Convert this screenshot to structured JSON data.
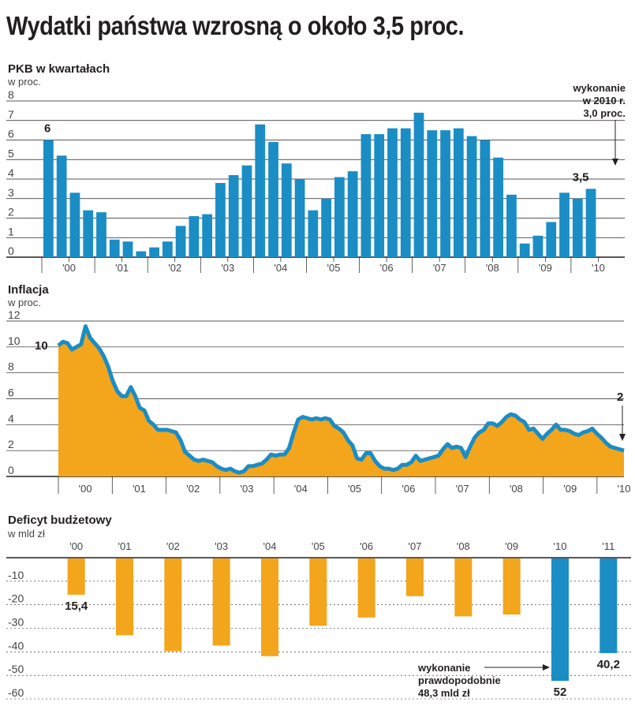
{
  "title": "Wydatki państwa wzrosną o około 3,5 proc.",
  "colors": {
    "blue": "#1a8dc5",
    "orange": "#f3a51c",
    "grid": "#231f20",
    "text": "#231f20"
  },
  "chart_data": [
    {
      "type": "bar",
      "title": "PKB w kwartałach",
      "ylabel": "w proc.",
      "ylim": [
        0,
        8
      ],
      "yticks": [
        0,
        1,
        2,
        3,
        4,
        5,
        6,
        7,
        8
      ],
      "xtick_labels": [
        "'00",
        "'01",
        "'02",
        "'03",
        "'04",
        "'05",
        "'06",
        "'07",
        "'08",
        "'09",
        "'10"
      ],
      "categories": [
        "2000Q1",
        "2000Q2",
        "2000Q3",
        "2000Q4",
        "2001Q1",
        "2001Q2",
        "2001Q3",
        "2001Q4",
        "2002Q1",
        "2002Q2",
        "2002Q3",
        "2002Q4",
        "2003Q1",
        "2003Q2",
        "2003Q3",
        "2003Q4",
        "2004Q1",
        "2004Q2",
        "2004Q3",
        "2004Q4",
        "2005Q1",
        "2005Q2",
        "2005Q3",
        "2005Q4",
        "2006Q1",
        "2006Q2",
        "2006Q3",
        "2006Q4",
        "2007Q1",
        "2007Q2",
        "2007Q3",
        "2007Q4",
        "2008Q1",
        "2008Q2",
        "2008Q3",
        "2008Q4",
        "2009Q1",
        "2009Q2",
        "2009Q3",
        "2009Q4",
        "2010Q1",
        "2010Q2"
      ],
      "values": [
        6.0,
        5.2,
        3.3,
        2.4,
        2.3,
        0.9,
        0.8,
        0.3,
        0.5,
        0.8,
        1.6,
        2.1,
        2.2,
        3.8,
        4.2,
        4.7,
        6.8,
        5.9,
        4.8,
        4.0,
        2.4,
        3.0,
        4.1,
        4.4,
        6.3,
        6.3,
        6.6,
        6.6,
        7.4,
        6.5,
        6.5,
        6.6,
        6.2,
        6.0,
        5.1,
        3.2,
        0.7,
        1.1,
        1.8,
        3.3,
        3.0,
        3.5
      ],
      "data_labels": {
        "first": "6",
        "last": "3,5"
      },
      "annotation": [
        "wykonanie",
        "w 2010 r.",
        "3,0 proc."
      ]
    },
    {
      "type": "area",
      "title": "Inflacja",
      "ylabel": "w proc.",
      "ylim": [
        0,
        12
      ],
      "yticks": [
        0,
        2,
        4,
        6,
        8,
        10,
        12
      ],
      "xtick_labels": [
        "'00",
        "'01",
        "'02",
        "'03",
        "'04",
        "'05",
        "'06",
        "'07",
        "'08",
        "'09",
        "'10"
      ],
      "x_start": 2000.0,
      "x_step_months": 1,
      "values": [
        10.1,
        10.4,
        10.3,
        9.8,
        10.0,
        10.2,
        11.6,
        10.7,
        10.3,
        9.9,
        9.3,
        8.5,
        7.4,
        6.6,
        6.2,
        6.2,
        6.9,
        6.2,
        5.3,
        5.1,
        4.3,
        4.0,
        3.6,
        3.6,
        3.6,
        3.5,
        3.4,
        2.8,
        1.9,
        1.6,
        1.3,
        1.2,
        1.3,
        1.2,
        1.1,
        0.8,
        0.6,
        0.5,
        0.6,
        0.4,
        0.3,
        0.4,
        0.8,
        0.8,
        0.9,
        1.0,
        1.3,
        1.7,
        1.6,
        1.7,
        1.7,
        2.2,
        3.4,
        4.4,
        4.6,
        4.5,
        4.4,
        4.5,
        4.4,
        4.5,
        4.4,
        3.9,
        3.7,
        3.4,
        2.8,
        2.4,
        1.4,
        1.3,
        1.8,
        1.8,
        1.2,
        0.8,
        0.6,
        0.6,
        0.5,
        0.6,
        0.9,
        0.9,
        1.1,
        1.6,
        1.2,
        1.3,
        1.4,
        1.5,
        1.6,
        2.1,
        2.5,
        2.2,
        2.3,
        2.2,
        1.5,
        2.3,
        3.0,
        3.4,
        3.6,
        4.1,
        4.1,
        3.9,
        4.2,
        4.6,
        4.8,
        4.7,
        4.4,
        4.2,
        3.6,
        3.7,
        3.3,
        2.9,
        3.3,
        3.6,
        4.0,
        3.6,
        3.6,
        3.5,
        3.3,
        3.2,
        3.4,
        3.5,
        3.7,
        3.3,
        3.0,
        2.6,
        2.3,
        2.2,
        2.1,
        2.0
      ],
      "data_labels": {
        "first": "10",
        "last": "2"
      }
    },
    {
      "type": "bar",
      "title": "Deficyt budżetowy",
      "ylabel": "w mld zł",
      "ylim": [
        -60,
        0
      ],
      "yticks": [
        -10,
        -20,
        -30,
        -40,
        -50,
        -60
      ],
      "categories": [
        "'00",
        "'01",
        "'02",
        "'03",
        "'04",
        "'05",
        "'06",
        "'07",
        "'08",
        "'09",
        "'10",
        "'11"
      ],
      "values": [
        -15.4,
        -32.6,
        -39.4,
        -37.0,
        -41.5,
        -28.6,
        -25.1,
        -16.0,
        -24.6,
        -23.8,
        -52.0,
        -40.2
      ],
      "highlight": [
        "'10",
        "'11"
      ],
      "data_labels": {
        "'00": "15,4",
        "'10": "52",
        "'11": "40,2"
      },
      "annotation": [
        "wykonanie",
        "prawdopodobnie",
        "48,3 mld zł"
      ]
    }
  ]
}
